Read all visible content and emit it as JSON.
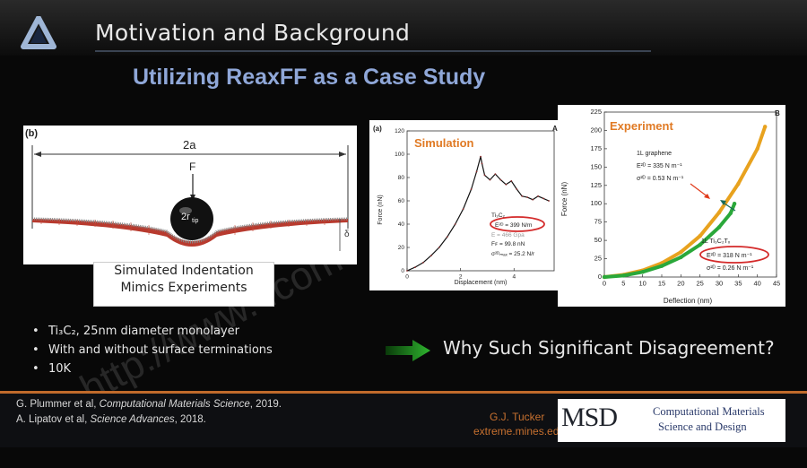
{
  "header": {
    "title": "Motivation and Background",
    "subtitle": "Utilizing ReaxFF as a Case Study"
  },
  "panel_b": {
    "tag": "(b)",
    "dimension_label": "2a",
    "force_label": "F",
    "radius_label": "2r",
    "radius_sub": "tip",
    "depth_label": "δ",
    "caption_line1": "Simulated Indentation",
    "caption_line2": "Mimics Experiments"
  },
  "panel_a": {
    "tag": "(a)",
    "corner_tag": "A",
    "title": "Simulation",
    "title_color": "#e07a24",
    "y_label": "Force (nN)",
    "x_label": "Displacement (nm)",
    "y_ticks": [
      "0",
      "20",
      "40",
      "60",
      "80",
      "100",
      "120"
    ],
    "x_ticks": [
      "0",
      "2",
      "4"
    ],
    "annot": {
      "material": "Ti₃C₂",
      "e2d": "E²ᴰ = 399 N/m",
      "e_partial": "E = 466 Gpa",
      "ff": "Fꜰ = 99.8 nN",
      "sigma": "σ²ᴰₘₐₓ = 25.2 N/r"
    }
  },
  "panel_B": {
    "corner_tag": "B",
    "title": "Experiment",
    "title_color": "#e07a24",
    "y_label": "Force (nN)",
    "x_label": "Deflection (nm)",
    "y_ticks": [
      "0",
      "25",
      "50",
      "75",
      "100",
      "125",
      "150",
      "175",
      "200",
      "225"
    ],
    "x_ticks": [
      "0",
      "5",
      "10",
      "15",
      "20",
      "25",
      "30",
      "35",
      "40",
      "45"
    ],
    "graphene_label": "1L graphene",
    "graphene_e2d": "E²ᴰ = 335 N m⁻¹",
    "graphene_sigma": "σ²ᴰ = 0.53 N m⁻¹",
    "mxene_label": "1L Ti₃C₂Tₓ",
    "mxene_e2d": "E²ᴰ = 318 N m⁻¹",
    "mxene_sigma": "σ²ᴰ = 0.26 N m⁻¹"
  },
  "chart_data": [
    {
      "type": "line",
      "title": "Simulation",
      "xlabel": "Displacement (nm)",
      "ylabel": "Force (nN)",
      "xlim": [
        0,
        5.5
      ],
      "ylim": [
        0,
        120
      ],
      "series": [
        {
          "values": [
            [
              0,
              0
            ],
            [
              0.3,
              3
            ],
            [
              0.6,
              7
            ],
            [
              0.9,
              13
            ],
            [
              1.2,
              20
            ],
            [
              1.5,
              29
            ],
            [
              1.8,
              40
            ],
            [
              2.1,
              53
            ],
            [
              2.4,
              70
            ],
            [
              2.6,
              85
            ],
            [
              2.75,
              98
            ],
            [
              2.8,
              92
            ],
            [
              2.9,
              82
            ],
            [
              3.1,
              78
            ],
            [
              3.3,
              83
            ],
            [
              3.5,
              78
            ],
            [
              3.7,
              74
            ],
            [
              3.9,
              77
            ],
            [
              4.1,
              70
            ],
            [
              4.3,
              64
            ],
            [
              4.5,
              63
            ],
            [
              4.7,
              61
            ],
            [
              4.9,
              64
            ],
            [
              5.1,
              62
            ],
            [
              5.3,
              60
            ]
          ]
        }
      ]
    },
    {
      "type": "line",
      "title": "Experiment",
      "xlabel": "Deflection (nm)",
      "ylabel": "Force (nN)",
      "xlim": [
        0,
        45
      ],
      "ylim": [
        0,
        225
      ],
      "series": [
        {
          "name": "1L graphene",
          "color": "#e8a21e",
          "values": [
            [
              0,
              0
            ],
            [
              5,
              3
            ],
            [
              10,
              9
            ],
            [
              15,
              19
            ],
            [
              20,
              34
            ],
            [
              25,
              56
            ],
            [
              30,
              88
            ],
            [
              35,
              127
            ],
            [
              40,
              175
            ],
            [
              42,
              205
            ]
          ]
        },
        {
          "name": "1L Ti₃C₂Tₓ",
          "color": "#2aa83a",
          "values": [
            [
              0,
              0
            ],
            [
              5,
              2
            ],
            [
              10,
              7
            ],
            [
              15,
              15
            ],
            [
              20,
              27
            ],
            [
              25,
              44
            ],
            [
              30,
              68
            ],
            [
              33,
              87
            ],
            [
              34,
              100
            ]
          ]
        }
      ]
    }
  ],
  "bullets": [
    "Ti₃C₂, 25nm diameter monolayer",
    "With and without surface terminations",
    "10K"
  ],
  "question": "Why Such Significant Disagreement?",
  "arrow_color": "#2a9a2a",
  "references": [
    {
      "authors": "G. Plummer et al, ",
      "journal": "Computational Materials Science",
      "year": ", 2019."
    },
    {
      "authors": "A. Lipatov et al, ",
      "journal": "Science Advances",
      "year": ", 2018."
    }
  ],
  "footer": {
    "author": "G.J. Tucker",
    "site": "extreme.mines.edu",
    "logo_text": "MSD",
    "logo_line1": "Computational Materials",
    "logo_line2": "Science and Design"
  },
  "watermark": "http://www.  .com"
}
